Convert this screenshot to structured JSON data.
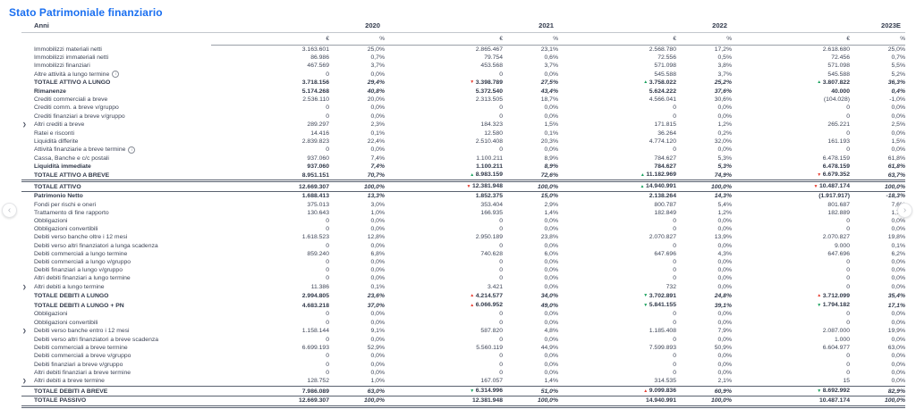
{
  "title": "Stato Patrimoniale finanziario",
  "anni_label": "Anni",
  "years": [
    "2020",
    "2021",
    "2022",
    "2023E"
  ],
  "subheaders": {
    "currency": "€",
    "percent": "%"
  },
  "nav": {
    "left": "‹",
    "right": "›"
  },
  "colors": {
    "accent_blue": "#1a6ff0",
    "trend_green": "#17a05c",
    "trend_red": "#e63c2f",
    "text": "#3d4456"
  },
  "rows": [
    {
      "label": "Immobilizzi materiali netti",
      "cells": [
        {
          "v": "3.163.601",
          "p": "25,0%"
        },
        {
          "v": "2.865.467",
          "p": "23,1%"
        },
        {
          "v": "2.568.780",
          "p": "17,2%"
        },
        {
          "v": "2.618.680",
          "p": "25,0%"
        }
      ]
    },
    {
      "label": "Immobilizzi immateriali netti",
      "cells": [
        {
          "v": "86.986",
          "p": "0,7%"
        },
        {
          "v": "79.754",
          "p": "0,6%"
        },
        {
          "v": "72.556",
          "p": "0,5%"
        },
        {
          "v": "72.456",
          "p": "0,7%"
        }
      ]
    },
    {
      "label": "Immobilizzi finanziari",
      "cells": [
        {
          "v": "467.569",
          "p": "3,7%"
        },
        {
          "v": "453.568",
          "p": "3,7%"
        },
        {
          "v": "571.098",
          "p": "3,8%"
        },
        {
          "v": "571.098",
          "p": "5,5%"
        }
      ]
    },
    {
      "label": "Altre attività a lungo termine",
      "info": true,
      "cells": [
        {
          "v": "0",
          "p": "0,0%"
        },
        {
          "v": "0",
          "p": "0,0%"
        },
        {
          "v": "545.588",
          "p": "3,7%"
        },
        {
          "v": "545.588",
          "p": "5,2%"
        }
      ]
    },
    {
      "label": "TOTALE ATTIVO A LUNGO",
      "bold": true,
      "cells": [
        {
          "v": "3.718.156",
          "p": "29,4%"
        },
        {
          "v": "3.398.789",
          "p": "27,5%",
          "a": "down",
          "c": "red"
        },
        {
          "v": "3.758.022",
          "p": "25,2%",
          "a": "up",
          "c": "green"
        },
        {
          "v": "3.807.822",
          "p": "36,3%",
          "a": "up",
          "c": "green"
        }
      ]
    },
    {
      "label": "Rimanenze",
      "bold": true,
      "cells": [
        {
          "v": "5.174.268",
          "p": "40,8%"
        },
        {
          "v": "5.372.540",
          "p": "43,4%"
        },
        {
          "v": "5.624.222",
          "p": "37,6%"
        },
        {
          "v": "40.000",
          "p": "0,4%"
        }
      ]
    },
    {
      "label": "Crediti commerciali a breve",
      "cells": [
        {
          "v": "2.536.110",
          "p": "20,0%"
        },
        {
          "v": "2.313.505",
          "p": "18,7%"
        },
        {
          "v": "4.566.041",
          "p": "30,6%"
        },
        {
          "v": "(104.028)",
          "p": "-1,0%"
        }
      ]
    },
    {
      "label": "Crediti comm. a breve v/gruppo",
      "cells": [
        {
          "v": "0",
          "p": "0,0%"
        },
        {
          "v": "0",
          "p": "0,0%"
        },
        {
          "v": "0",
          "p": "0,0%"
        },
        {
          "v": "0",
          "p": "0,0%"
        }
      ]
    },
    {
      "label": "Crediti finanziari a breve v/gruppo",
      "cells": [
        {
          "v": "0",
          "p": "0,0%"
        },
        {
          "v": "0",
          "p": "0,0%"
        },
        {
          "v": "0",
          "p": "0,0%"
        },
        {
          "v": "0",
          "p": "0,0%"
        }
      ]
    },
    {
      "label": "Altri crediti a breve",
      "chevron": true,
      "cells": [
        {
          "v": "289.297",
          "p": "2,3%"
        },
        {
          "v": "184.323",
          "p": "1,5%"
        },
        {
          "v": "171.815",
          "p": "1,2%"
        },
        {
          "v": "265.221",
          "p": "2,5%"
        }
      ]
    },
    {
      "label": "Ratei e risconti",
      "cells": [
        {
          "v": "14.416",
          "p": "0,1%"
        },
        {
          "v": "12.580",
          "p": "0,1%"
        },
        {
          "v": "36.264",
          "p": "0,2%"
        },
        {
          "v": "0",
          "p": "0,0%"
        }
      ]
    },
    {
      "label": "Liquidità differite",
      "cells": [
        {
          "v": "2.839.823",
          "p": "22,4%"
        },
        {
          "v": "2.510.408",
          "p": "20,3%"
        },
        {
          "v": "4.774.120",
          "p": "32,0%"
        },
        {
          "v": "161.193",
          "p": "1,5%"
        }
      ]
    },
    {
      "label": "Attività finanziarie a breve termine",
      "info": true,
      "cells": [
        {
          "v": "0",
          "p": "0,0%"
        },
        {
          "v": "0",
          "p": "0,0%"
        },
        {
          "v": "0",
          "p": "0,0%"
        },
        {
          "v": "0",
          "p": "0,0%"
        }
      ]
    },
    {
      "label": "Cassa, Banche e c/c postali",
      "cells": [
        {
          "v": "937.060",
          "p": "7,4%"
        },
        {
          "v": "1.100.211",
          "p": "8,9%"
        },
        {
          "v": "784.627",
          "p": "5,3%"
        },
        {
          "v": "6.478.159",
          "p": "61,8%"
        }
      ]
    },
    {
      "label": "Liquidità immediate",
      "bold": true,
      "cells": [
        {
          "v": "937.060",
          "p": "7,4%"
        },
        {
          "v": "1.100.211",
          "p": "8,9%"
        },
        {
          "v": "784.627",
          "p": "5,3%"
        },
        {
          "v": "6.478.159",
          "p": "61,8%"
        }
      ]
    },
    {
      "label": "TOTALE ATTIVO A BREVE",
      "bold": true,
      "cells": [
        {
          "v": "8.951.151",
          "p": "70,7%"
        },
        {
          "v": "8.983.159",
          "p": "72,6%",
          "a": "up",
          "c": "green"
        },
        {
          "v": "11.182.969",
          "p": "74,9%",
          "a": "up",
          "c": "green"
        },
        {
          "v": "6.679.352",
          "p": "63,7%",
          "a": "down",
          "c": "red"
        }
      ]
    },
    {
      "label": "TOTALE ATTIVO",
      "bold": true,
      "rule": "grand-top",
      "cells": [
        {
          "v": "12.669.307",
          "p": "100,0%"
        },
        {
          "v": "12.381.948",
          "p": "100,0%",
          "a": "down",
          "c": "red"
        },
        {
          "v": "14.940.991",
          "p": "100,0%",
          "a": "up",
          "c": "green"
        },
        {
          "v": "10.487.174",
          "p": "100,0%",
          "a": "down",
          "c": "red"
        }
      ]
    },
    {
      "label": "Patrimonio Netto",
      "bold": true,
      "cells": [
        {
          "v": "1.688.413",
          "p": "13,3%"
        },
        {
          "v": "1.852.375",
          "p": "15,0%"
        },
        {
          "v": "2.138.264",
          "p": "14,3%"
        },
        {
          "v": "(1.917.917)",
          "p": "-18,3%"
        }
      ]
    },
    {
      "label": "Fondi per rischi e oneri",
      "cells": [
        {
          "v": "375.013",
          "p": "3,0%"
        },
        {
          "v": "353.404",
          "p": "2,9%"
        },
        {
          "v": "800.787",
          "p": "5,4%"
        },
        {
          "v": "801.687",
          "p": "7,6%"
        }
      ]
    },
    {
      "label": "Trattamento di fine rapporto",
      "cells": [
        {
          "v": "130.643",
          "p": "1,0%"
        },
        {
          "v": "166.935",
          "p": "1,4%"
        },
        {
          "v": "182.849",
          "p": "1,2%"
        },
        {
          "v": "182.889",
          "p": "1,7%"
        }
      ]
    },
    {
      "label": "Obbligazioni",
      "cells": [
        {
          "v": "0",
          "p": "0,0%"
        },
        {
          "v": "0",
          "p": "0,0%"
        },
        {
          "v": "0",
          "p": "0,0%"
        },
        {
          "v": "0",
          "p": "0,0%"
        }
      ]
    },
    {
      "label": "Obbligazioni convertibili",
      "cells": [
        {
          "v": "0",
          "p": "0,0%"
        },
        {
          "v": "0",
          "p": "0,0%"
        },
        {
          "v": "0",
          "p": "0,0%"
        },
        {
          "v": "0",
          "p": "0,0%"
        }
      ]
    },
    {
      "label": "Debiti verso banche oltre i 12 mesi",
      "cells": [
        {
          "v": "1.618.523",
          "p": "12,8%"
        },
        {
          "v": "2.950.189",
          "p": "23,8%"
        },
        {
          "v": "2.070.827",
          "p": "13,9%"
        },
        {
          "v": "2.070.827",
          "p": "19,8%"
        }
      ]
    },
    {
      "label": "Debiti verso altri finanziatori a lunga scadenza",
      "cells": [
        {
          "v": "0",
          "p": "0,0%"
        },
        {
          "v": "0",
          "p": "0,0%"
        },
        {
          "v": "0",
          "p": "0,0%"
        },
        {
          "v": "9.000",
          "p": "0,1%"
        }
      ]
    },
    {
      "label": "Debiti commerciali a lungo termine",
      "cells": [
        {
          "v": "859.240",
          "p": "6,8%"
        },
        {
          "v": "740.628",
          "p": "6,0%"
        },
        {
          "v": "647.696",
          "p": "4,3%"
        },
        {
          "v": "647.696",
          "p": "6,2%"
        }
      ]
    },
    {
      "label": "Debiti commerciali a lungo v/gruppo",
      "cells": [
        {
          "v": "0",
          "p": "0,0%"
        },
        {
          "v": "0",
          "p": "0,0%"
        },
        {
          "v": "0",
          "p": "0,0%"
        },
        {
          "v": "0",
          "p": "0,0%"
        }
      ]
    },
    {
      "label": "Debiti finanziari a lungo v/gruppo",
      "cells": [
        {
          "v": "0",
          "p": "0,0%"
        },
        {
          "v": "0",
          "p": "0,0%"
        },
        {
          "v": "0",
          "p": "0,0%"
        },
        {
          "v": "0",
          "p": "0,0%"
        }
      ]
    },
    {
      "label": "Altri debiti finanziari a lungo termine",
      "cells": [
        {
          "v": "0",
          "p": "0,0%"
        },
        {
          "v": "0",
          "p": "0,0%"
        },
        {
          "v": "0",
          "p": "0,0%"
        },
        {
          "v": "0",
          "p": "0,0%"
        }
      ]
    },
    {
      "label": "Altri debiti a lungo termine",
      "chevron": true,
      "cells": [
        {
          "v": "11.386",
          "p": "0,1%"
        },
        {
          "v": "3.421",
          "p": "0,0%"
        },
        {
          "v": "732",
          "p": "0,0%"
        },
        {
          "v": "0",
          "p": "0,0%"
        }
      ]
    },
    {
      "label": "TOTALE DEBITI A LUNGO",
      "bold": true,
      "cells": [
        {
          "v": "2.994.805",
          "p": "23,6%"
        },
        {
          "v": "4.214.577",
          "p": "34,0%",
          "a": "up",
          "c": "red"
        },
        {
          "v": "3.702.891",
          "p": "24,8%",
          "a": "down",
          "c": "green"
        },
        {
          "v": "3.712.099",
          "p": "35,4%",
          "a": "up",
          "c": "red"
        }
      ]
    },
    {
      "label": "TOTALE DEBITI A LUNGO + PN",
      "bold": true,
      "cells": [
        {
          "v": "4.683.218",
          "p": "37,0%"
        },
        {
          "v": "6.066.952",
          "p": "49,0%",
          "a": "up",
          "c": "red"
        },
        {
          "v": "5.841.155",
          "p": "39,1%",
          "a": "down",
          "c": "green"
        },
        {
          "v": "1.794.182",
          "p": "17,1%",
          "a": "down",
          "c": "green"
        }
      ]
    },
    {
      "label": "Obbligazioni",
      "cells": [
        {
          "v": "0",
          "p": "0,0%"
        },
        {
          "v": "0",
          "p": "0,0%"
        },
        {
          "v": "0",
          "p": "0,0%"
        },
        {
          "v": "0",
          "p": "0,0%"
        }
      ]
    },
    {
      "label": "Obbligazioni convertibili",
      "cells": [
        {
          "v": "0",
          "p": "0,0%"
        },
        {
          "v": "0",
          "p": "0,0%"
        },
        {
          "v": "0",
          "p": "0,0%"
        },
        {
          "v": "0",
          "p": "0,0%"
        }
      ]
    },
    {
      "label": "Debiti verso banche entro i 12 mesi",
      "chevron": true,
      "cells": [
        {
          "v": "1.158.144",
          "p": "9,1%"
        },
        {
          "v": "587.820",
          "p": "4,8%"
        },
        {
          "v": "1.185.408",
          "p": "7,9%"
        },
        {
          "v": "2.087.000",
          "p": "19,9%"
        }
      ]
    },
    {
      "label": "Debiti verso altri finanziatori a breve scadenza",
      "cells": [
        {
          "v": "0",
          "p": "0,0%"
        },
        {
          "v": "0",
          "p": "0,0%"
        },
        {
          "v": "0",
          "p": "0,0%"
        },
        {
          "v": "1.000",
          "p": "0,0%"
        }
      ]
    },
    {
      "label": "Debiti commerciali a breve termine",
      "cells": [
        {
          "v": "6.699.193",
          "p": "52,9%"
        },
        {
          "v": "5.560.119",
          "p": "44,9%"
        },
        {
          "v": "7.599.893",
          "p": "50,9%"
        },
        {
          "v": "6.604.977",
          "p": "63,0%"
        }
      ]
    },
    {
      "label": "Debiti commerciali a breve v/gruppo",
      "cells": [
        {
          "v": "0",
          "p": "0,0%"
        },
        {
          "v": "0",
          "p": "0,0%"
        },
        {
          "v": "0",
          "p": "0,0%"
        },
        {
          "v": "0",
          "p": "0,0%"
        }
      ]
    },
    {
      "label": "Debiti finanziari a breve v/gruppo",
      "cells": [
        {
          "v": "0",
          "p": "0,0%"
        },
        {
          "v": "0",
          "p": "0,0%"
        },
        {
          "v": "0",
          "p": "0,0%"
        },
        {
          "v": "0",
          "p": "0,0%"
        }
      ]
    },
    {
      "label": "Altri debiti finanziari a breve termine",
      "cells": [
        {
          "v": "0",
          "p": "0,0%"
        },
        {
          "v": "0",
          "p": "0,0%"
        },
        {
          "v": "0",
          "p": "0,0%"
        },
        {
          "v": "0",
          "p": "0,0%"
        }
      ]
    },
    {
      "label": "Altri debiti a breve termine",
      "chevron": true,
      "cells": [
        {
          "v": "128.752",
          "p": "1,0%"
        },
        {
          "v": "167.057",
          "p": "1,4%"
        },
        {
          "v": "314.535",
          "p": "2,1%"
        },
        {
          "v": "15",
          "p": "0,0%"
        }
      ]
    },
    {
      "label": "TOTALE DEBITI A BREVE",
      "bold": true,
      "rule": "line-top",
      "cells": [
        {
          "v": "7.986.089",
          "p": "63,0%"
        },
        {
          "v": "6.314.996",
          "p": "51,0%",
          "a": "down",
          "c": "green"
        },
        {
          "v": "9.099.836",
          "p": "60,9%",
          "a": "up",
          "c": "red"
        },
        {
          "v": "8.692.992",
          "p": "82,9%",
          "a": "down",
          "c": "green"
        }
      ]
    },
    {
      "label": "TOTALE PASSIVO",
      "bold": true,
      "rule": "grand-bottom",
      "cells": [
        {
          "v": "12.669.307",
          "p": "100,0%"
        },
        {
          "v": "12.381.948",
          "p": "100,0%"
        },
        {
          "v": "14.940.991",
          "p": "100,0%"
        },
        {
          "v": "10.487.174",
          "p": "100,0%"
        }
      ]
    }
  ]
}
